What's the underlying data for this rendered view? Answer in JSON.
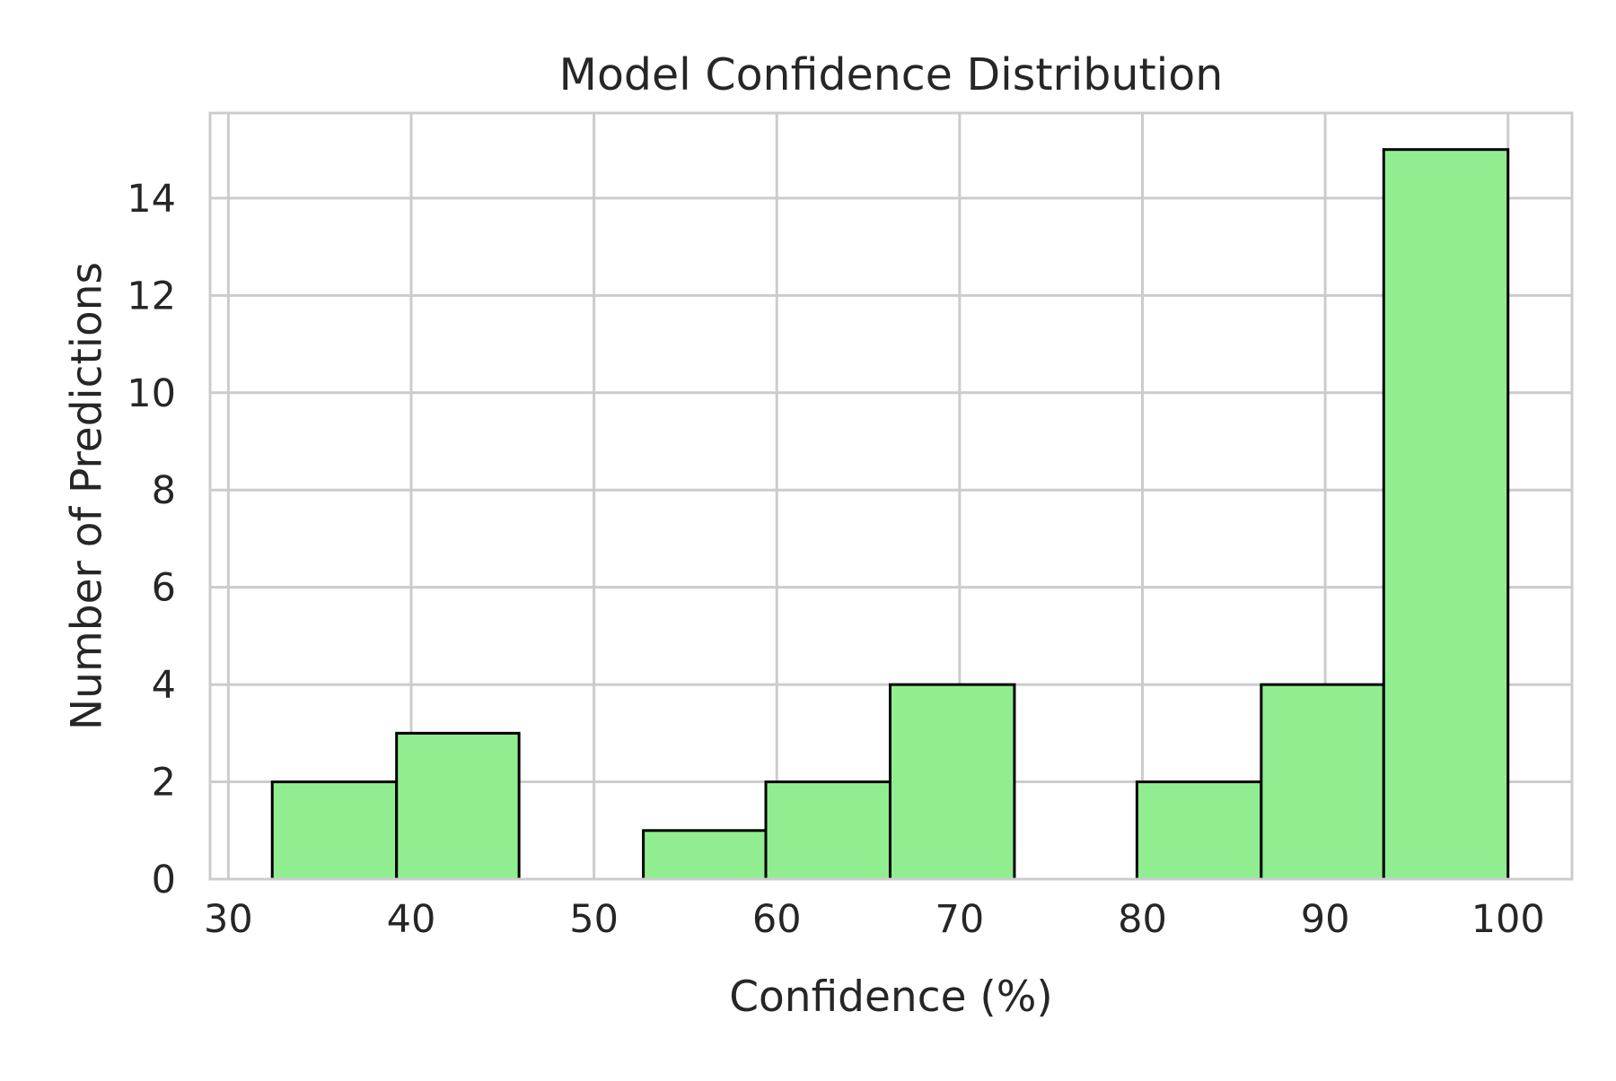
{
  "chart_data": {
    "type": "bar",
    "title": "Model Confidence Distribution",
    "xlabel": "Confidence (%)",
    "ylabel": "Number of Predictions",
    "xlim": [
      29,
      103.5
    ],
    "ylim": [
      0,
      15.75
    ],
    "xticks": [
      30,
      40,
      50,
      60,
      70,
      80,
      90,
      100
    ],
    "yticks": [
      0,
      2,
      4,
      6,
      8,
      10,
      12,
      14
    ],
    "bins": [
      {
        "start": 32.4,
        "end": 39.2,
        "count": 2
      },
      {
        "start": 39.2,
        "end": 45.9,
        "count": 3
      },
      {
        "start": 45.9,
        "end": 52.7,
        "count": 0
      },
      {
        "start": 52.7,
        "end": 59.4,
        "count": 1
      },
      {
        "start": 59.4,
        "end": 66.2,
        "count": 2
      },
      {
        "start": 66.2,
        "end": 73.0,
        "count": 4
      },
      {
        "start": 73.0,
        "end": 79.7,
        "count": 0
      },
      {
        "start": 79.7,
        "end": 86.5,
        "count": 2
      },
      {
        "start": 86.5,
        "end": 93.2,
        "count": 4
      },
      {
        "start": 93.2,
        "end": 100.0,
        "count": 15
      }
    ],
    "bar_color": "#90ee90",
    "edge_color": "#000000",
    "grid": true
  }
}
